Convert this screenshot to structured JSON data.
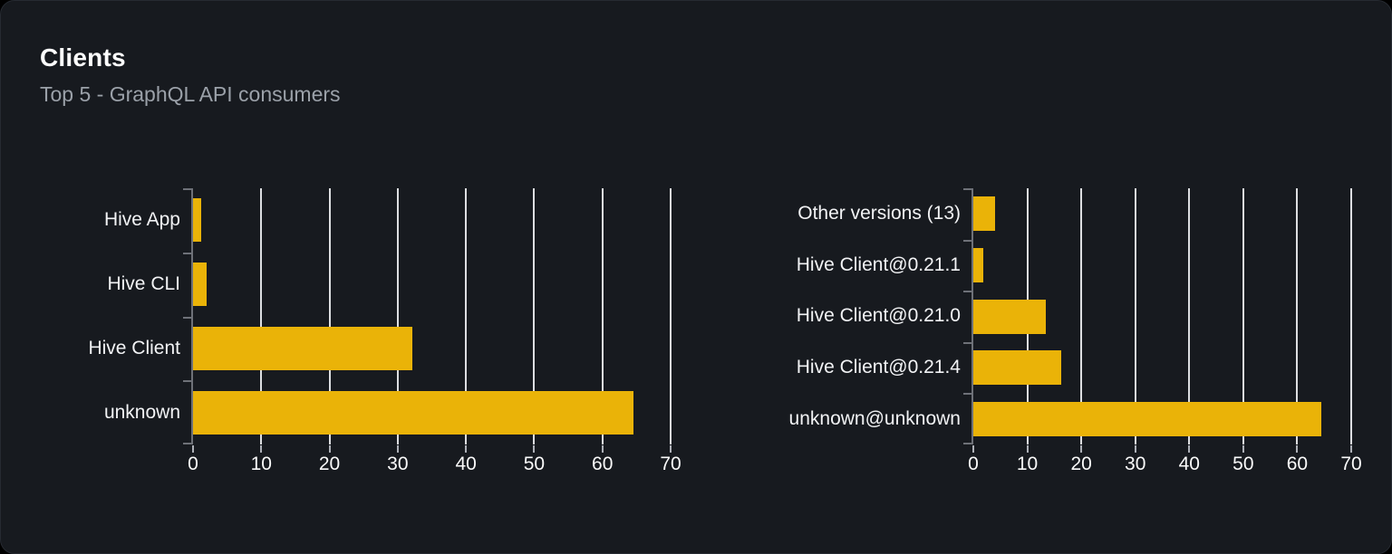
{
  "header": {
    "title": "Clients",
    "subtitle": "Top 5 - GraphQL API consumers"
  },
  "colors": {
    "card_background": "#171a1f",
    "card_border": "#262a31",
    "bar": "#eab308",
    "gridline": "#e8e9ec",
    "axis": "#6e7178",
    "category_label": "#f2f3f5",
    "x_tick_label": "#fafafa",
    "title": "#ffffff",
    "subtitle": "#9ba1a9"
  },
  "chart_data": [
    {
      "type": "bar",
      "orientation": "horizontal",
      "name": "top-clients",
      "title": "",
      "categories": [
        "Hive App",
        "Hive CLI",
        "Hive Client",
        "unknown"
      ],
      "values": [
        1.2,
        2,
        32.2,
        64.5
      ],
      "xlabel": "",
      "ylabel": "",
      "xlim": [
        0,
        70
      ],
      "x_ticks": [
        0,
        10,
        20,
        30,
        40,
        50,
        60,
        70
      ],
      "grid": true,
      "legend": "none",
      "bar_color": "#eab308"
    },
    {
      "type": "bar",
      "orientation": "horizontal",
      "name": "top-client-versions",
      "title": "",
      "categories": [
        "Other versions (13)",
        "Hive Client@0.21.1",
        "Hive Client@0.21.0",
        "Hive Client@0.21.4",
        "unknown@unknown"
      ],
      "values": [
        4,
        1.9,
        13.4,
        16.3,
        64.4
      ],
      "xlabel": "",
      "ylabel": "",
      "xlim": [
        0,
        70
      ],
      "x_ticks": [
        0,
        10,
        20,
        30,
        40,
        50,
        60,
        70
      ],
      "grid": true,
      "legend": "none",
      "bar_color": "#eab308"
    }
  ]
}
